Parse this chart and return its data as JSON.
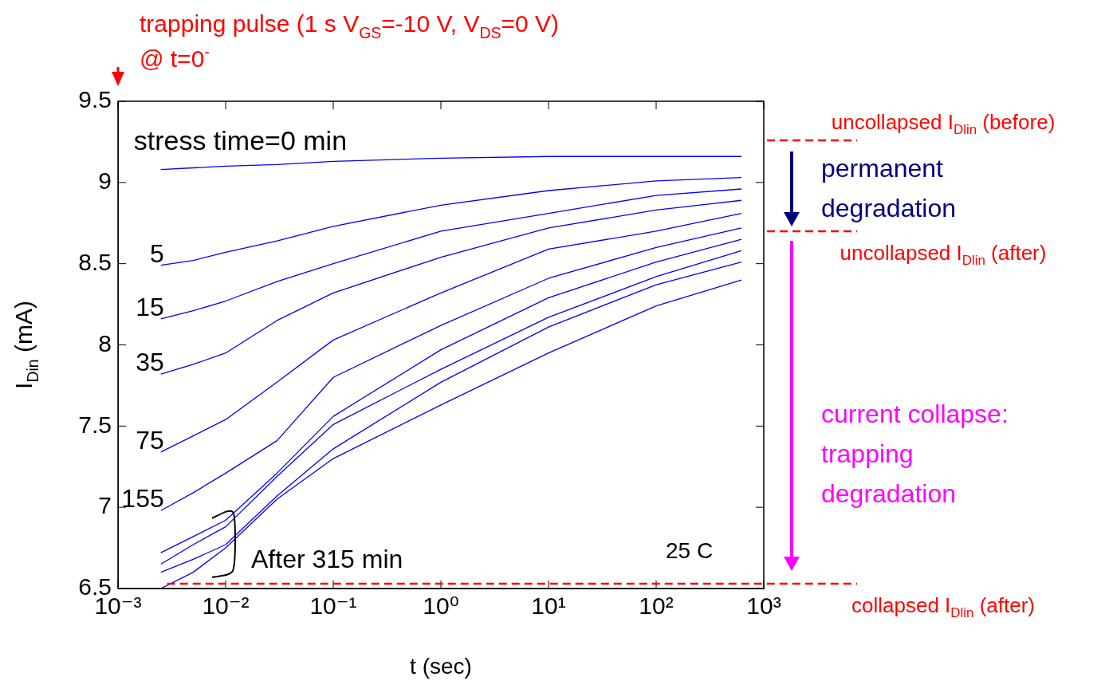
{
  "chart_data": {
    "type": "line",
    "xlabel": "t (sec)",
    "ylabel": "I$_{Din}$ (mA)",
    "log": "x",
    "grid": false,
    "legend": false,
    "marker": "none",
    "line_style": "solid",
    "xlim": [
      0.001,
      1000
    ],
    "xticks": [
      {
        "value": 0.001,
        "label": "10⁻³"
      },
      {
        "value": 0.01,
        "label": "10⁻²"
      },
      {
        "value": 0.1,
        "label": "10⁻¹"
      },
      {
        "value": 1,
        "label": "10⁰"
      },
      {
        "value": 10,
        "label": "10¹"
      },
      {
        "value": 100,
        "label": "10²"
      },
      {
        "value": 1000,
        "label": "10³"
      }
    ],
    "ylim": [
      6.5,
      9.5
    ],
    "yticks": [
      6.5,
      7,
      7.5,
      8,
      8.5,
      9,
      9.5
    ],
    "x": [
      0.0025,
      0.005,
      0.01,
      0.03,
      0.1,
      1,
      10,
      100,
      620
    ],
    "series": [
      {
        "name": "stress time=0 min",
        "color": "#0000ff",
        "values": [
          9.08,
          9.09,
          9.1,
          9.11,
          9.13,
          9.15,
          9.16,
          9.16,
          9.16
        ]
      },
      {
        "name": "5",
        "color": "#0000ff",
        "values": [
          8.49,
          8.52,
          8.57,
          8.64,
          8.73,
          8.86,
          8.95,
          9.01,
          9.03
        ]
      },
      {
        "name": "15",
        "color": "#0000ff",
        "values": [
          8.16,
          8.21,
          8.27,
          8.39,
          8.5,
          8.7,
          8.81,
          8.92,
          8.96
        ]
      },
      {
        "name": "35",
        "color": "#0000ff",
        "values": [
          7.82,
          7.88,
          7.95,
          8.15,
          8.32,
          8.54,
          8.72,
          8.83,
          8.89
        ]
      },
      {
        "name": "75",
        "color": "#0000ff",
        "values": [
          7.34,
          7.44,
          7.54,
          7.77,
          8.03,
          8.32,
          8.59,
          8.7,
          8.81
        ]
      },
      {
        "name": "155",
        "color": "#0000ff",
        "values": [
          6.98,
          7.09,
          7.21,
          7.41,
          7.8,
          8.12,
          8.41,
          8.6,
          8.72
        ]
      },
      {
        "color": "#0000ff",
        "values": [
          6.72,
          6.82,
          6.92,
          7.21,
          7.56,
          7.97,
          8.29,
          8.51,
          8.65
        ]
      },
      {
        "color": "#0000ff",
        "values": [
          6.65,
          6.77,
          6.88,
          7.19,
          7.51,
          7.85,
          8.17,
          8.42,
          8.58
        ]
      },
      {
        "color": "#0000ff",
        "values": [
          6.6,
          6.68,
          6.77,
          7.07,
          7.36,
          7.77,
          8.11,
          8.37,
          8.51
        ]
      },
      {
        "color": "#0000ff",
        "values": [
          6.5,
          6.6,
          6.75,
          7.05,
          7.3,
          7.63,
          7.95,
          8.24,
          8.4
        ]
      }
    ],
    "ref_lines": [
      {
        "axis": "y",
        "value": 9.26,
        "label": "uncollapsed I$_{Dlin}$ (before)",
        "color": "#ff0000",
        "line_style": "dashed"
      },
      {
        "axis": "y",
        "value": 8.7,
        "label": "uncollapsed I$_{Dlin}$ (after)",
        "color": "#ff0000",
        "line_style": "dashed"
      },
      {
        "axis": "y",
        "value": 6.53,
        "label": "collapsed I$_{Dlin}$ (after)",
        "color": "#ff0000",
        "line_style": "dashed"
      }
    ],
    "annotations": [
      "trapping pulse (1 s V$_{GS}$=-10 V, V$_{DS}$=0 V)",
      "@ t=0$^{-}$",
      "After 315 min",
      "25 C",
      "permanent degradation",
      "current collapse: trapping degradation"
    ]
  }
}
